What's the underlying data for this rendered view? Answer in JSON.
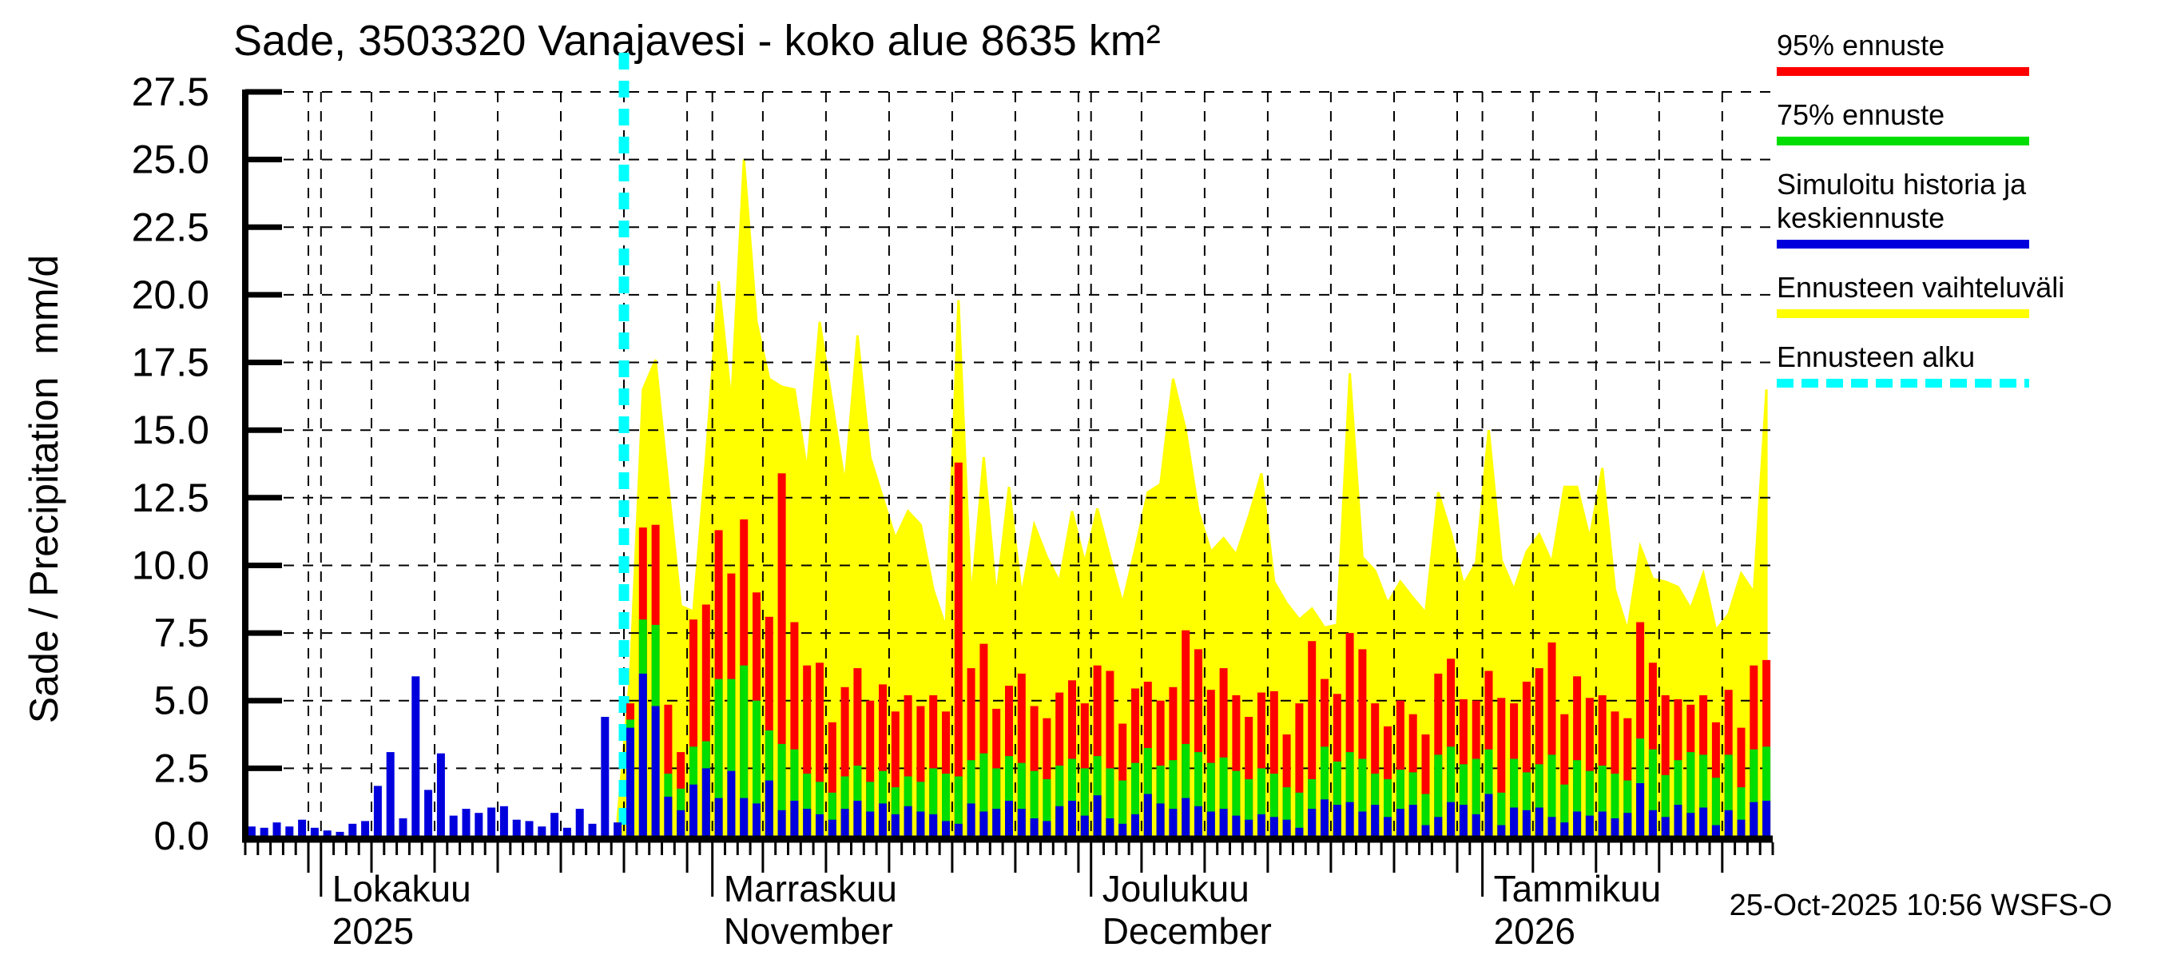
{
  "title": "Sade, 3503320 Vanajavesi - koko alue 8635 km²",
  "y_axis": {
    "label": "Sade / Precipitation  mm/d",
    "unit": "mm/d",
    "tick_labels": [
      "0.0",
      "2.5",
      "5.0",
      "7.5",
      "10.0",
      "12.5",
      "15.0",
      "17.5",
      "20.0",
      "22.5",
      "25.0",
      "27.5"
    ],
    "min": 0.0,
    "max": 27.5,
    "step": 2.5
  },
  "x_axis": {
    "months": [
      {
        "label": "Lokakuu",
        "sublabel": "2025",
        "start_slot": 6
      },
      {
        "label": "Marraskuu",
        "sublabel": "November",
        "start_slot": 37
      },
      {
        "label": "Joulukuu",
        "sublabel": "December",
        "start_slot": 67
      },
      {
        "label": "Tammikuu",
        "sublabel": "2026",
        "start_slot": 98
      }
    ]
  },
  "legend": {
    "items": [
      {
        "label": "95% ennuste",
        "color": "#ff0000",
        "style": "solid"
      },
      {
        "label": "75% ennuste",
        "color": "#00dd00",
        "style": "solid"
      },
      {
        "label": "Simuloitu historia ja keskiennuste",
        "color": "#0000dd",
        "style": "solid"
      },
      {
        "label": "Ennusteen vaihteluväli",
        "color": "#ffff00",
        "style": "solid"
      },
      {
        "label": "Ennusteen alku",
        "color": "#00ffff",
        "style": "dashed"
      }
    ]
  },
  "footer": {
    "text": "25-Oct-2025 10:56 WSFS-O"
  },
  "colors": {
    "p95": "#ff0000",
    "p75": "#00dd00",
    "median": "#0000dd",
    "range": "#ffff00",
    "forecast_start": "#00ffff",
    "grid": "#000000",
    "background": "#ffffff"
  },
  "chart_data": {
    "type": "bar",
    "title": "Sade, 3503320 Vanajavesi - koko alue 8635 km²",
    "ylabel": "Sade / Precipitation mm/d",
    "ylim": [
      0,
      27.5
    ],
    "grid": true,
    "legend_position": "top-right",
    "start_date": "2025-09-25",
    "forecast_start_date": "2025-10-25",
    "end_date": "2026-01-23",
    "history": {
      "name": "Simuloitu historia ja keskiennuste (havaintojakso)",
      "values": [
        0.35,
        0.3,
        0.5,
        0.35,
        0.6,
        0.3,
        0.2,
        0.15,
        0.45,
        0.55,
        1.85,
        3.1,
        0.65,
        5.9,
        1.7,
        3.05,
        0.75,
        1.0,
        0.85,
        1.05,
        1.1,
        0.6,
        0.55,
        0.35,
        0.85,
        0.3,
        1.0,
        0.45,
        4.4,
        0.5
      ]
    },
    "forecast": {
      "start": "2025-10-25",
      "range_start_value": 0.65,
      "median": [
        4.0,
        6.0,
        4.8,
        1.45,
        0.95,
        1.9,
        2.5,
        1.4,
        2.4,
        1.4,
        1.2,
        2.05,
        0.95,
        1.3,
        1.0,
        0.8,
        0.6,
        1.0,
        1.3,
        0.9,
        1.2,
        0.8,
        1.1,
        0.9,
        0.8,
        0.55,
        0.45,
        1.2,
        0.9,
        1.0,
        1.3,
        1.0,
        0.65,
        0.55,
        1.1,
        1.3,
        0.75,
        1.5,
        0.65,
        0.45,
        0.8,
        1.55,
        1.2,
        1.0,
        1.4,
        1.1,
        0.9,
        1.0,
        0.75,
        0.6,
        0.8,
        0.7,
        0.6,
        0.3,
        1.0,
        1.35,
        1.15,
        1.25,
        0.9,
        1.15,
        0.7,
        1.0,
        1.15,
        0.4,
        0.7,
        1.25,
        1.15,
        0.8,
        1.55,
        0.4,
        1.05,
        0.95,
        1.05,
        0.7,
        0.5,
        0.9,
        0.75,
        0.9,
        0.65,
        0.85,
        1.95,
        0.95,
        0.7,
        1.15,
        0.85,
        1.05,
        0.4,
        0.95,
        0.6,
        1.25,
        1.3
      ],
      "p75": [
        4.3,
        8.0,
        7.8,
        2.3,
        1.75,
        3.3,
        3.5,
        5.8,
        5.8,
        6.3,
        5.0,
        3.9,
        3.4,
        3.2,
        2.3,
        2.0,
        1.6,
        2.2,
        2.6,
        2.0,
        2.4,
        1.8,
        2.2,
        2.0,
        2.5,
        2.3,
        2.2,
        2.8,
        3.05,
        2.5,
        2.95,
        2.7,
        2.4,
        2.1,
        2.6,
        2.85,
        2.5,
        2.95,
        2.5,
        2.05,
        2.7,
        3.25,
        2.6,
        2.8,
        3.4,
        3.1,
        2.7,
        2.9,
        2.4,
        2.1,
        2.5,
        2.3,
        1.8,
        1.6,
        2.1,
        3.3,
        2.75,
        3.1,
        2.85,
        2.3,
        2.1,
        2.45,
        2.35,
        1.55,
        3.0,
        3.3,
        2.65,
        2.85,
        3.2,
        1.6,
        2.85,
        2.35,
        2.65,
        3.0,
        1.9,
        2.8,
        2.4,
        2.6,
        2.3,
        2.05,
        3.6,
        3.2,
        2.25,
        2.8,
        3.1,
        3.0,
        2.15,
        3.0,
        1.8,
        3.2,
        3.3
      ],
      "p95": [
        4.9,
        11.4,
        11.5,
        4.85,
        3.1,
        8.0,
        8.55,
        11.3,
        9.7,
        11.7,
        9.0,
        8.1,
        13.4,
        7.9,
        6.3,
        6.4,
        4.2,
        5.5,
        6.2,
        5.0,
        5.6,
        4.6,
        5.2,
        4.8,
        5.2,
        4.6,
        13.8,
        6.2,
        7.1,
        4.7,
        5.55,
        6.0,
        4.8,
        4.35,
        5.3,
        5.75,
        4.9,
        6.3,
        6.1,
        4.15,
        5.45,
        5.7,
        5.0,
        5.5,
        7.6,
        6.9,
        5.4,
        6.2,
        5.2,
        4.4,
        5.3,
        5.35,
        3.75,
        4.9,
        7.2,
        5.8,
        5.25,
        7.5,
        6.9,
        4.9,
        4.05,
        5.0,
        4.5,
        3.75,
        6.0,
        6.55,
        5.05,
        5.0,
        6.1,
        5.1,
        4.9,
        5.7,
        6.2,
        7.15,
        4.5,
        5.9,
        5.1,
        5.2,
        4.6,
        4.35,
        7.9,
        6.4,
        5.2,
        5.05,
        4.85,
        5.2,
        4.2,
        5.4,
        4.0,
        6.3,
        6.5
      ],
      "range_max": [
        6.0,
        16.5,
        17.6,
        13.0,
        8.5,
        8.3,
        14.0,
        20.5,
        16.0,
        25.0,
        19.0,
        16.9,
        16.6,
        16.5,
        13.5,
        19.0,
        16.0,
        13.0,
        18.5,
        14.0,
        12.5,
        11.0,
        12.0,
        11.5,
        9.1,
        7.7,
        19.8,
        8.7,
        14.0,
        8.8,
        12.9,
        8.9,
        11.5,
        10.3,
        9.4,
        12.0,
        10.1,
        12.1,
        10.3,
        8.6,
        10.6,
        12.7,
        13.0,
        16.9,
        15.0,
        12.0,
        10.5,
        11.0,
        10.4,
        11.8,
        13.4,
        9.4,
        8.6,
        8.0,
        8.4,
        7.7,
        7.8,
        17.1,
        10.3,
        9.8,
        8.6,
        9.4,
        8.8,
        8.25,
        12.7,
        11.2,
        9.3,
        10.1,
        15.0,
        10.2,
        9.1,
        10.5,
        11.15,
        10.1,
        12.9,
        12.9,
        11.0,
        13.6,
        9.1,
        7.6,
        10.7,
        9.5,
        9.4,
        9.2,
        8.4,
        9.7,
        7.6,
        8.2,
        9.7,
        9.0,
        16.5
      ]
    }
  }
}
